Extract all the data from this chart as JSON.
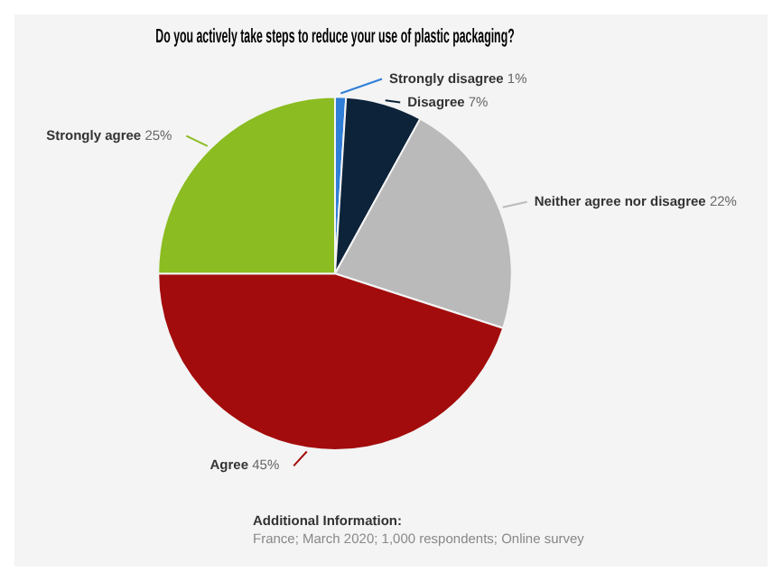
{
  "chart_data": {
    "type": "pie",
    "title": "Do you actively take steps to reduce your use of plastic packaging?",
    "categories": [
      "Strongly disagree",
      "Disagree",
      "Neither agree nor disagree",
      "Agree",
      "Strongly agree"
    ],
    "values": [
      1,
      7,
      22,
      45,
      25
    ],
    "value_labels": [
      "1%",
      "7%",
      "22%",
      "45%",
      "25%"
    ],
    "colors": [
      "#2f7ed8",
      "#0d233a",
      "#bababa",
      "#a30c0c",
      "#8bbc21"
    ],
    "annotations": [
      "Additional Information:",
      "France; March 2020; 1,000 respondents; Online survey"
    ]
  }
}
